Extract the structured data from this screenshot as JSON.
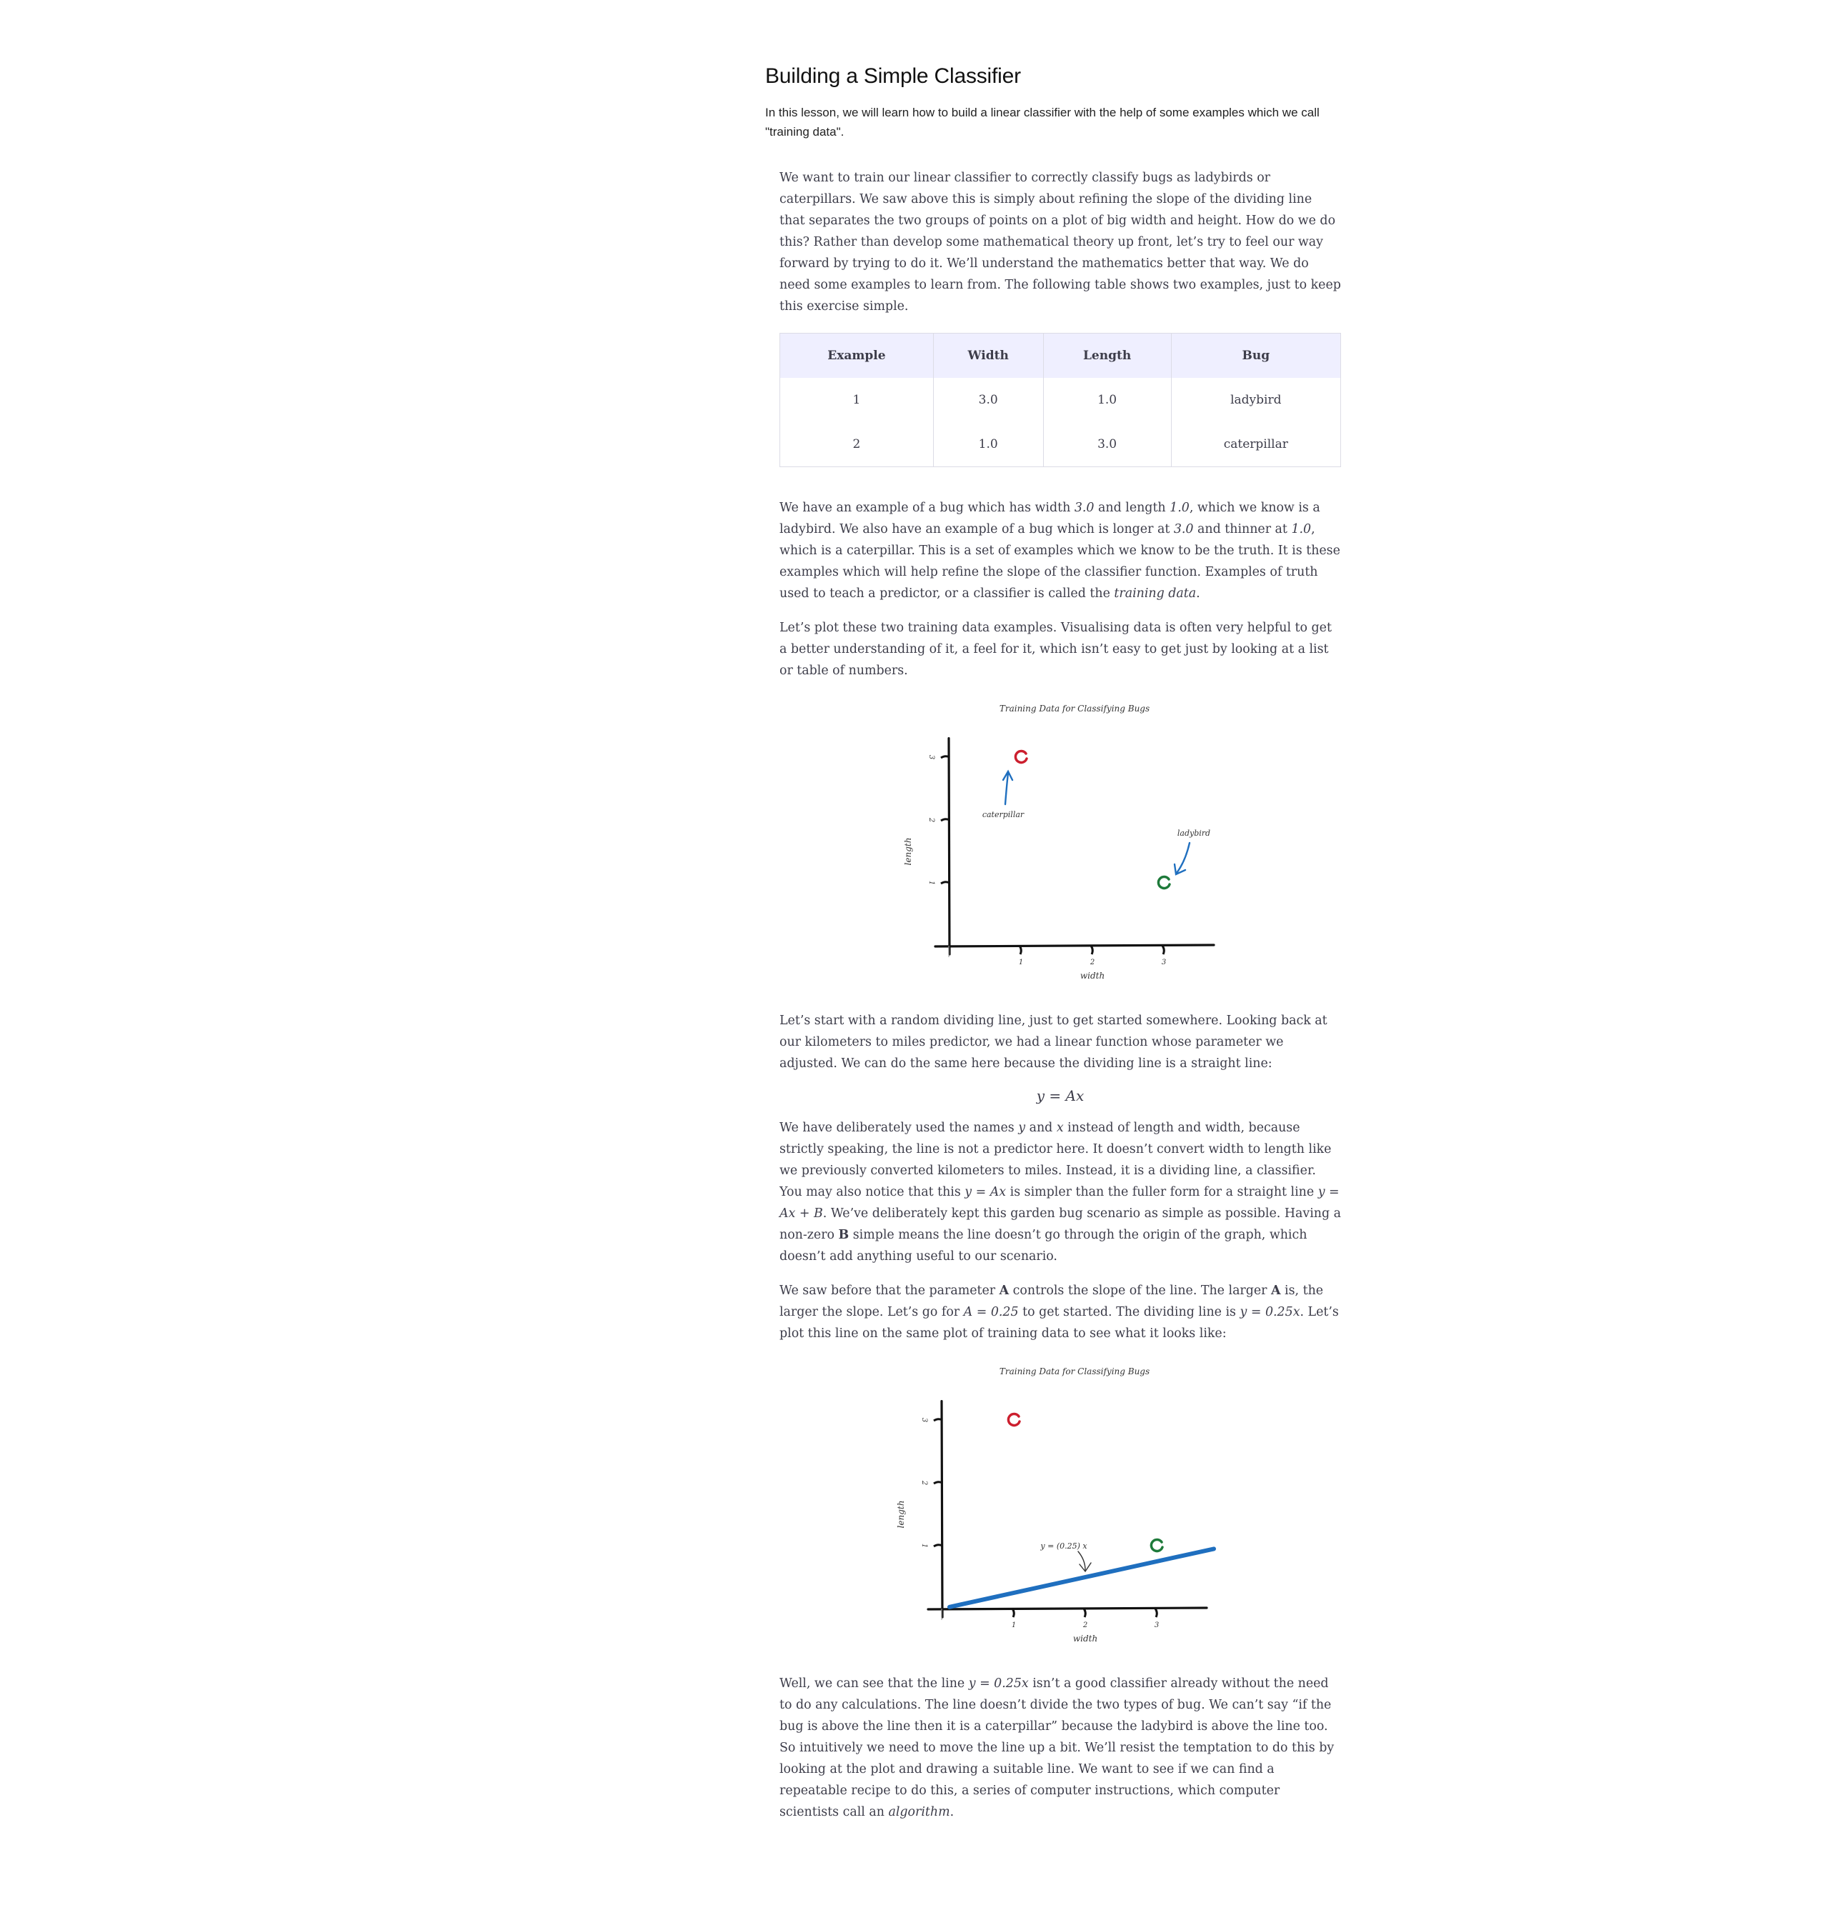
{
  "lesson": {
    "title": "Building a Simple Classifier",
    "intro": "In this lesson, we will learn how to build a linear classifier with the help of some examples which we call \"training data\"."
  },
  "paragraphs": {
    "p1": "We want to train our linear classifier to correctly classify bugs as ladybirds or caterpillars. We saw above this is simply about refining the slope of the dividing line that separates the two groups of points on a plot of big width and height. How do we do this? Rather than develop some mathematical theory up front, let’s try to feel our way forward by trying to do it. We’ll understand the mathematics better that way. We do need some examples to learn from. The following table shows two examples, just to keep this exercise simple.",
    "p2a": "We have an example of a bug which has width ",
    "p2_w1": "3.0",
    "p2b": " and length ",
    "p2_l1": "1.0",
    "p2c": ", which we know is a ladybird. We also have an example of a bug which is longer at ",
    "p2_l2": "3.0",
    "p2d": " and thinner at ",
    "p2_w2": "1.0",
    "p2e": ", which is a caterpillar. This is a set of examples which we know to be the truth. It is these examples which will help refine the slope of the classifier function. Examples of truth used to teach a predictor, or a classifier is called the ",
    "p2_em": "training data",
    "p2f": ".",
    "p3": "Let’s plot these two training data examples. Visualising data is often very helpful to get a better understanding of it, a feel for it, which isn’t easy to get just by looking at a list or table of numbers.",
    "p4": "Let’s start with a random dividing line, just to get started somewhere. Looking back at our kilometers to miles predictor, we had a linear function whose parameter we adjusted. We can do the same here because the dividing line is a straight line:",
    "eq1": "y = Ax",
    "p5a": "We have deliberately used the names ",
    "p5_y": "y",
    "p5b": " and ",
    "p5_x": "x",
    "p5c": " instead of length and width, because strictly speaking, the line is not a predictor here. It doesn’t convert width to length like we previously converted kilometers to miles. Instead, it is a dividing line, a classifier. You may also notice that this ",
    "p5_eq1": "y = Ax",
    "p5d": " is simpler than the fuller form for a straight line ",
    "p5_eq2": "y = Ax + B",
    "p5e": ". We’ve deliberately kept this garden bug scenario as simple as possible. Having a non-zero ",
    "p5_B": "B",
    "p5f": " simple means the line doesn’t go through the origin of the graph, which doesn’t add anything useful to our scenario.",
    "p6a": "We saw before that the parameter ",
    "p6_A1": "A",
    "p6b": " controls the slope of the line. The larger ",
    "p6_A2": "A",
    "p6c": " is, the larger the slope. Let’s go for ",
    "p6_eq1": "A = 0.25",
    "p6d": " to get started. The dividing line is ",
    "p6_eq2": "y = 0.25x",
    "p6e": ". Let’s plot this line on the same plot of training data to see what it looks like:",
    "p7a": "Well, we can see that the line ",
    "p7_eq": "y = 0.25x",
    "p7b": " isn’t a good classifier already without the need to do any calculations. The line doesn’t divide the two types of bug. We can’t say “if the bug is above the line then it is a caterpillar” because the ladybird is above the line too. So intuitively we need to move the line up a bit. We’ll resist the temptation to do this by looking at the plot and drawing a suitable line. We want to see if we can find a repeatable recipe to do this, a series of computer instructions, which computer scientists call an ",
    "p7_em": "algorithm",
    "p7c": "."
  },
  "table": {
    "headers": [
      "Example",
      "Width",
      "Length",
      "Bug"
    ],
    "rows": [
      [
        "1",
        "3.0",
        "1.0",
        "ladybird"
      ],
      [
        "2",
        "1.0",
        "3.0",
        "caterpillar"
      ]
    ]
  },
  "chart_data": [
    {
      "type": "scatter",
      "title": "Training Data for Classifying Bugs",
      "xlabel": "width",
      "ylabel": "length",
      "xticks": [
        "1",
        "2",
        "3"
      ],
      "yticks": [
        "1",
        "2",
        "3"
      ],
      "xlim": [
        0,
        4
      ],
      "ylim": [
        0,
        3.3
      ],
      "points": [
        {
          "x": 1,
          "y": 3,
          "color": "#cc1f2e"
        },
        {
          "x": 3,
          "y": 1,
          "color": "#1e7a3a"
        }
      ],
      "annotations": [
        {
          "text": "caterpillar",
          "x": 1,
          "y": 3
        },
        {
          "text": "ladybird",
          "x": 3,
          "y": 1
        }
      ],
      "line": null
    },
    {
      "type": "scatter",
      "title": "Training Data for Classifying Bugs",
      "xlabel": "width",
      "ylabel": "length",
      "xticks": [
        "1",
        "2",
        "3"
      ],
      "yticks": [
        "1",
        "2",
        "3"
      ],
      "xlim": [
        0,
        4
      ],
      "ylim": [
        0,
        3.3
      ],
      "points": [
        {
          "x": 1,
          "y": 3,
          "color": "#cc1f2e"
        },
        {
          "x": 3,
          "y": 1,
          "color": "#1e7a3a"
        }
      ],
      "annotations": [
        {
          "text": "y = (0.25) x",
          "x": 1.7,
          "y": 0.5
        }
      ],
      "line": {
        "slope": 0.25,
        "intercept": 0,
        "x_from": 0.1,
        "x_to": 3.8,
        "color": "#1f6fbf"
      }
    }
  ]
}
